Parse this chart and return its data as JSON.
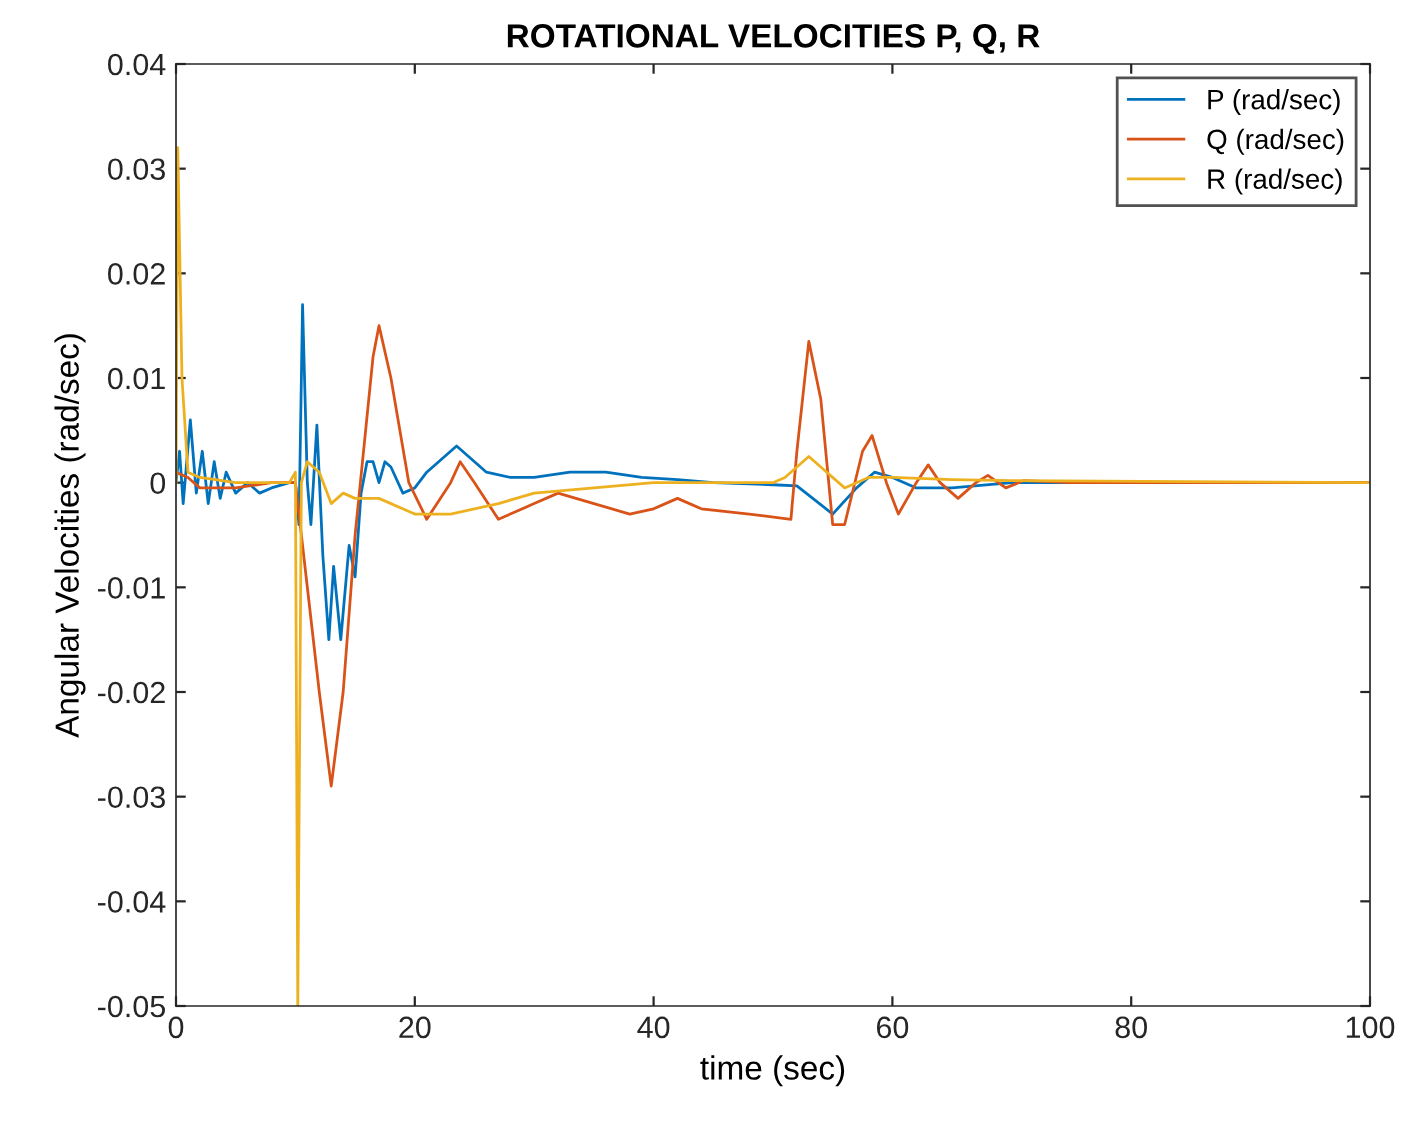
{
  "chart_data": {
    "type": "line",
    "title": "ROTATIONAL VELOCITIES P, Q, R",
    "xlabel": "time (sec)",
    "ylabel": "Angular Velocities (rad/sec)",
    "xlim": [
      0,
      100
    ],
    "xticks": [
      0,
      20,
      40,
      60,
      80,
      100
    ],
    "ylim": [
      -0.05,
      0.04
    ],
    "yticks": [
      -0.05,
      -0.04,
      -0.03,
      -0.02,
      -0.01,
      0,
      0.01,
      0.02,
      0.03,
      0.04
    ],
    "grid": false,
    "legend": "top right",
    "series": [
      {
        "name": "P (rad/sec)",
        "color": "#0072bd",
        "x": [
          0,
          0.3,
          0.6,
          1.2,
          1.7,
          2.2,
          2.7,
          3.2,
          3.7,
          4.2,
          5,
          6,
          7,
          8,
          9.5,
          10,
          10.3,
          10.6,
          11,
          11.3,
          11.8,
          12.3,
          12.8,
          13.2,
          13.8,
          14.5,
          15,
          15.5,
          16,
          16.5,
          17,
          17.5,
          18,
          19,
          20,
          21,
          23.5,
          26,
          28,
          30,
          33,
          36,
          39,
          42,
          45,
          50,
          52,
          55,
          57,
          58.5,
          60,
          62,
          65,
          70,
          80,
          100
        ],
        "values": [
          0,
          0.003,
          -0.002,
          0.006,
          -0.001,
          0.003,
          -0.002,
          0.002,
          -0.0015,
          0.001,
          -0.001,
          0,
          -0.001,
          -0.0005,
          0,
          0,
          -0.004,
          0.017,
          0,
          -0.004,
          0.0055,
          -0.007,
          -0.015,
          -0.008,
          -0.015,
          -0.006,
          -0.009,
          -0.001,
          0.002,
          0.002,
          0,
          0.002,
          0.0015,
          -0.001,
          -0.0005,
          0.001,
          0.0035,
          0.001,
          0.0005,
          0.0005,
          0.001,
          0.001,
          0.0005,
          0.0003,
          0,
          -0.0002,
          -0.0003,
          -0.003,
          -0.0005,
          0.001,
          0.0005,
          -0.0005,
          -0.0005,
          0,
          0,
          0
        ]
      },
      {
        "name": "Q (rad/sec)",
        "color": "#d95319",
        "x": [
          0,
          1,
          2,
          5,
          8,
          10,
          10.5,
          12,
          13,
          14,
          15,
          16.5,
          17,
          18,
          19.5,
          21,
          23,
          23.8,
          25,
          27,
          30,
          32,
          35,
          38,
          40,
          42,
          44,
          48,
          51.5,
          52,
          53,
          54,
          55,
          56,
          57.5,
          58.3,
          59.5,
          60.5,
          62,
          63,
          64,
          65.5,
          67,
          68,
          69.5,
          71,
          75,
          100
        ],
        "values": [
          0.001,
          0.0005,
          -0.0005,
          -0.0005,
          0,
          0,
          -0.005,
          -0.02,
          -0.029,
          -0.02,
          -0.005,
          0.012,
          0.015,
          0.01,
          0,
          -0.0035,
          0,
          0.002,
          0,
          -0.0035,
          -0.002,
          -0.001,
          -0.002,
          -0.003,
          -0.0025,
          -0.0015,
          -0.0025,
          -0.003,
          -0.0035,
          0.003,
          0.0135,
          0.008,
          -0.004,
          -0.004,
          0.003,
          0.0045,
          0,
          -0.003,
          0,
          0.0017,
          0,
          -0.0015,
          0,
          0.0007,
          -0.0005,
          0.0002,
          0,
          0
        ]
      },
      {
        "name": "R (rad/sec)",
        "color": "#edb120",
        "x": [
          0,
          0.15,
          0.5,
          1,
          2,
          5,
          9.5,
          10,
          10.2,
          10.5,
          11,
          12,
          13,
          14,
          15,
          17,
          20,
          23,
          27,
          30,
          35,
          40,
          50,
          51,
          53,
          54,
          56,
          58,
          60,
          65,
          70,
          100
        ],
        "values": [
          0,
          0.032,
          0.01,
          0.001,
          0.0005,
          0,
          0,
          0.001,
          -0.05,
          0,
          0.002,
          0.001,
          -0.002,
          -0.001,
          -0.0015,
          -0.0015,
          -0.003,
          -0.003,
          -0.002,
          -0.001,
          -0.0005,
          0,
          0,
          0.0005,
          0.0025,
          0.0015,
          -0.0005,
          0.0005,
          0.0005,
          0.0003,
          0.0002,
          0
        ]
      }
    ]
  }
}
